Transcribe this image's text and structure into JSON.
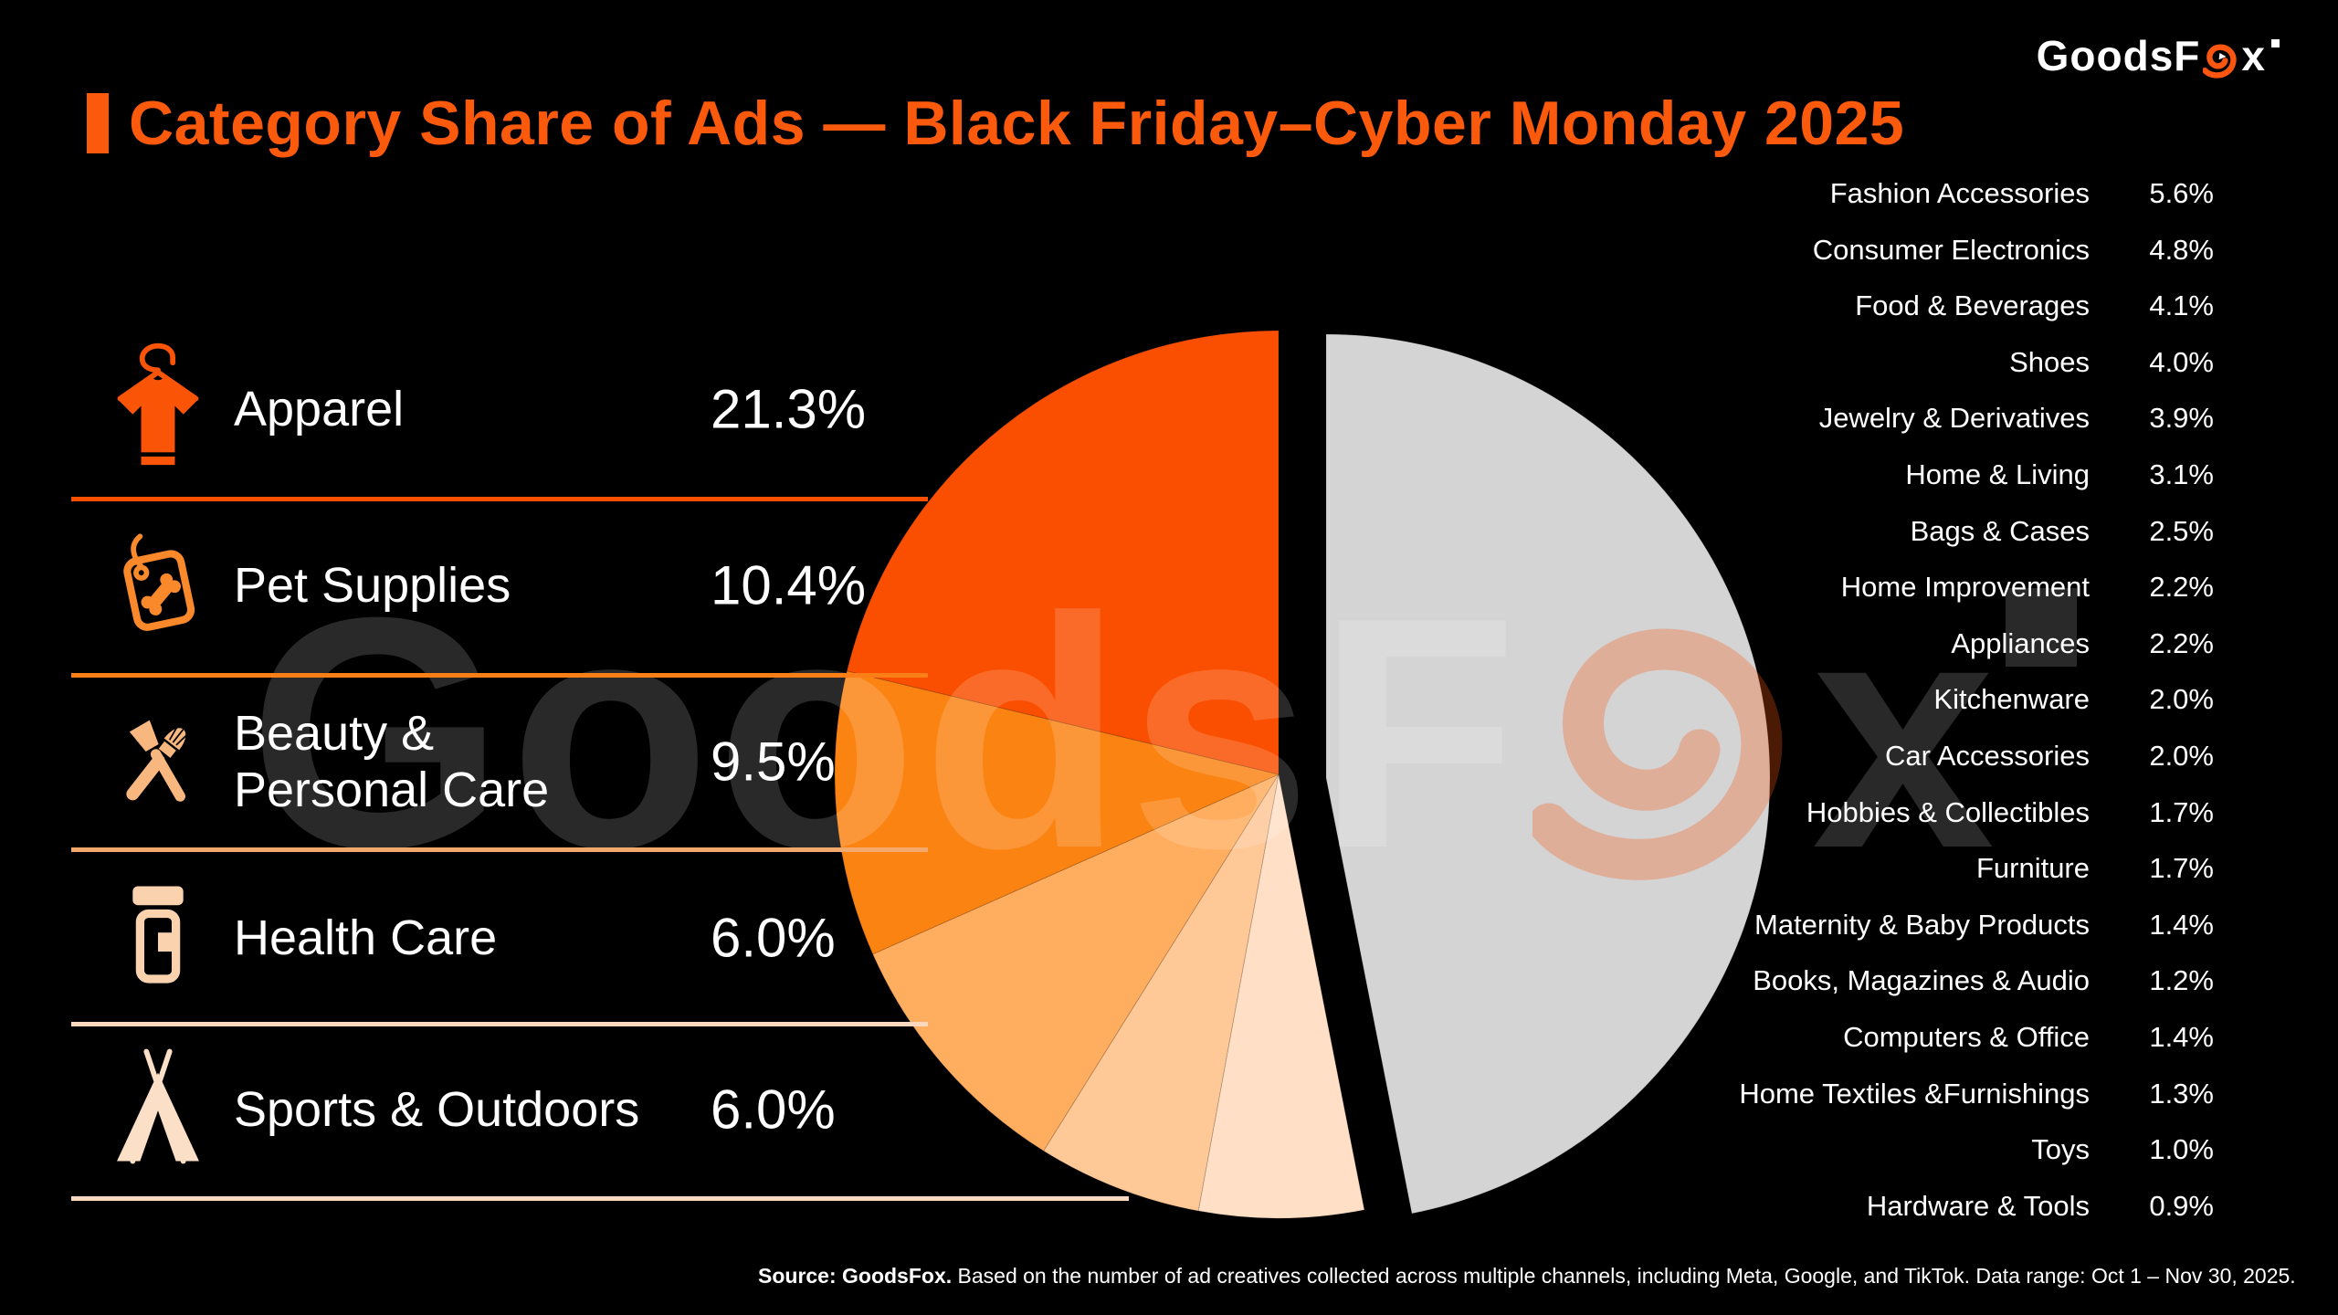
{
  "header": {
    "logo_prefix": "GoodsF",
    "logo_suffix": "x",
    "logo_color": "#ffffff",
    "logo_fox_color": "#fa560f"
  },
  "title": {
    "text": "Category Share of Ads — Black Friday–Cyber Monday 2025",
    "color": "#fb5a0d"
  },
  "left_panel": {
    "items": [
      {
        "label_lines": [
          "Apparel"
        ],
        "value": "21.3%",
        "icon": "tshirt-icon",
        "icon_color": "#fa5407",
        "divider_color": "#fa5000"
      },
      {
        "label_lines": [
          "Pet Supplies"
        ],
        "value": "10.4%",
        "icon": "pet-tag-icon",
        "icon_color": "#f9892a",
        "divider_color": "#fb7e17"
      },
      {
        "label_lines": [
          "Beauty &",
          "Personal Care"
        ],
        "value": "9.5%",
        "icon": "makeup-brushes-icon",
        "icon_color": "#f7b77e",
        "divider_color": "#f2a96b"
      },
      {
        "label_lines": [
          "Health Care"
        ],
        "value": "6.0%",
        "icon": "pill-bottle-icon",
        "icon_color": "#fbd2ae",
        "divider_color": "#fbd8be"
      },
      {
        "label_lines": [
          "Sports & Outdoors"
        ],
        "value": "6.0%",
        "icon": "tent-icon",
        "icon_color": "#fbdfc7",
        "divider_color": "#fbd8be"
      }
    ]
  },
  "right_panel": {
    "items": [
      {
        "label": "Fashion Accessories",
        "value": "5.6%"
      },
      {
        "label": "Consumer Electronics",
        "value": "4.8%"
      },
      {
        "label": "Food & Beverages",
        "value": "4.1%"
      },
      {
        "label": "Shoes",
        "value": "4.0%"
      },
      {
        "label": "Jewelry & Derivatives",
        "value": "3.9%"
      },
      {
        "label": "Home & Living",
        "value": "3.1%"
      },
      {
        "label": "Bags & Cases",
        "value": "2.5%"
      },
      {
        "label": "Home Improvement",
        "value": "2.2%"
      },
      {
        "label": "Appliances",
        "value": "2.2%"
      },
      {
        "label": "Kitchenware",
        "value": "2.0%"
      },
      {
        "label": "Car Accessories",
        "value": "2.0%"
      },
      {
        "label": "Hobbies & Collectibles",
        "value": "1.7%"
      },
      {
        "label": "Furniture",
        "value": "1.7%"
      },
      {
        "label": "Maternity & Baby Products",
        "value": "1.4%"
      },
      {
        "label": "Books, Magazines & Audio",
        "value": "1.2%"
      },
      {
        "label": "Computers & Office",
        "value": "1.4%"
      },
      {
        "label": "Home Textiles &Furnishings",
        "value": "1.3%"
      },
      {
        "label": "Toys",
        "value": "1.0%"
      },
      {
        "label": "Hardware & Tools",
        "value": "0.9%"
      }
    ]
  },
  "chart_data": {
    "type": "pie",
    "title": "Category Share of Ads — Black Friday–Cyber Monday 2025",
    "unit": "percent of ad creatives",
    "start_angle_deg": 0,
    "direction": "clockwise",
    "legend_position": "left panel (top 5) and right list (remaining categories)",
    "slices": [
      {
        "label": "All other categories (right-hand list combined)",
        "value": 47.0,
        "color": "#d4d4d4",
        "exploded": true
      },
      {
        "label": "Sports & Outdoors",
        "value": 6.0,
        "color": "#ffe0c6",
        "exploded": false
      },
      {
        "label": "Health Care",
        "value": 6.0,
        "color": "#ffc897",
        "exploded": false
      },
      {
        "label": "Beauty & Personal Care",
        "value": 9.5,
        "color": "#ffad5f",
        "exploded": false
      },
      {
        "label": "Pet Supplies",
        "value": 10.4,
        "color": "#fb8312",
        "exploded": false
      },
      {
        "label": "Apparel",
        "value": 21.3,
        "color": "#fa4f00",
        "exploded": false
      }
    ],
    "others_breakdown": [
      {
        "label": "Fashion Accessories",
        "value": 5.6
      },
      {
        "label": "Consumer Electronics",
        "value": 4.8
      },
      {
        "label": "Food & Beverages",
        "value": 4.1
      },
      {
        "label": "Shoes",
        "value": 4.0
      },
      {
        "label": "Jewelry & Derivatives",
        "value": 3.9
      },
      {
        "label": "Home & Living",
        "value": 3.1
      },
      {
        "label": "Bags & Cases",
        "value": 2.5
      },
      {
        "label": "Home Improvement",
        "value": 2.2
      },
      {
        "label": "Appliances",
        "value": 2.2
      },
      {
        "label": "Kitchenware",
        "value": 2.0
      },
      {
        "label": "Car Accessories",
        "value": 2.0
      },
      {
        "label": "Hobbies & Collectibles",
        "value": 1.7
      },
      {
        "label": "Furniture",
        "value": 1.7
      },
      {
        "label": "Maternity & Baby Products",
        "value": 1.4
      },
      {
        "label": "Books, Magazines & Audio",
        "value": 1.2
      },
      {
        "label": "Computers & Office",
        "value": 1.4
      },
      {
        "label": "Home Textiles &Furnishings",
        "value": 1.3
      },
      {
        "label": "Toys",
        "value": 1.0
      },
      {
        "label": "Hardware & Tools",
        "value": 0.9
      }
    ]
  },
  "watermark": {
    "prefix": "GoodsF",
    "suffix": "x"
  },
  "footer": {
    "source_bold": "Source: GoodsFox.",
    "description": " Based on the number of ad creatives collected across multiple channels, including Meta, Google, and TikTok. Data range: Oct 1 – Nov 30, 2025."
  }
}
